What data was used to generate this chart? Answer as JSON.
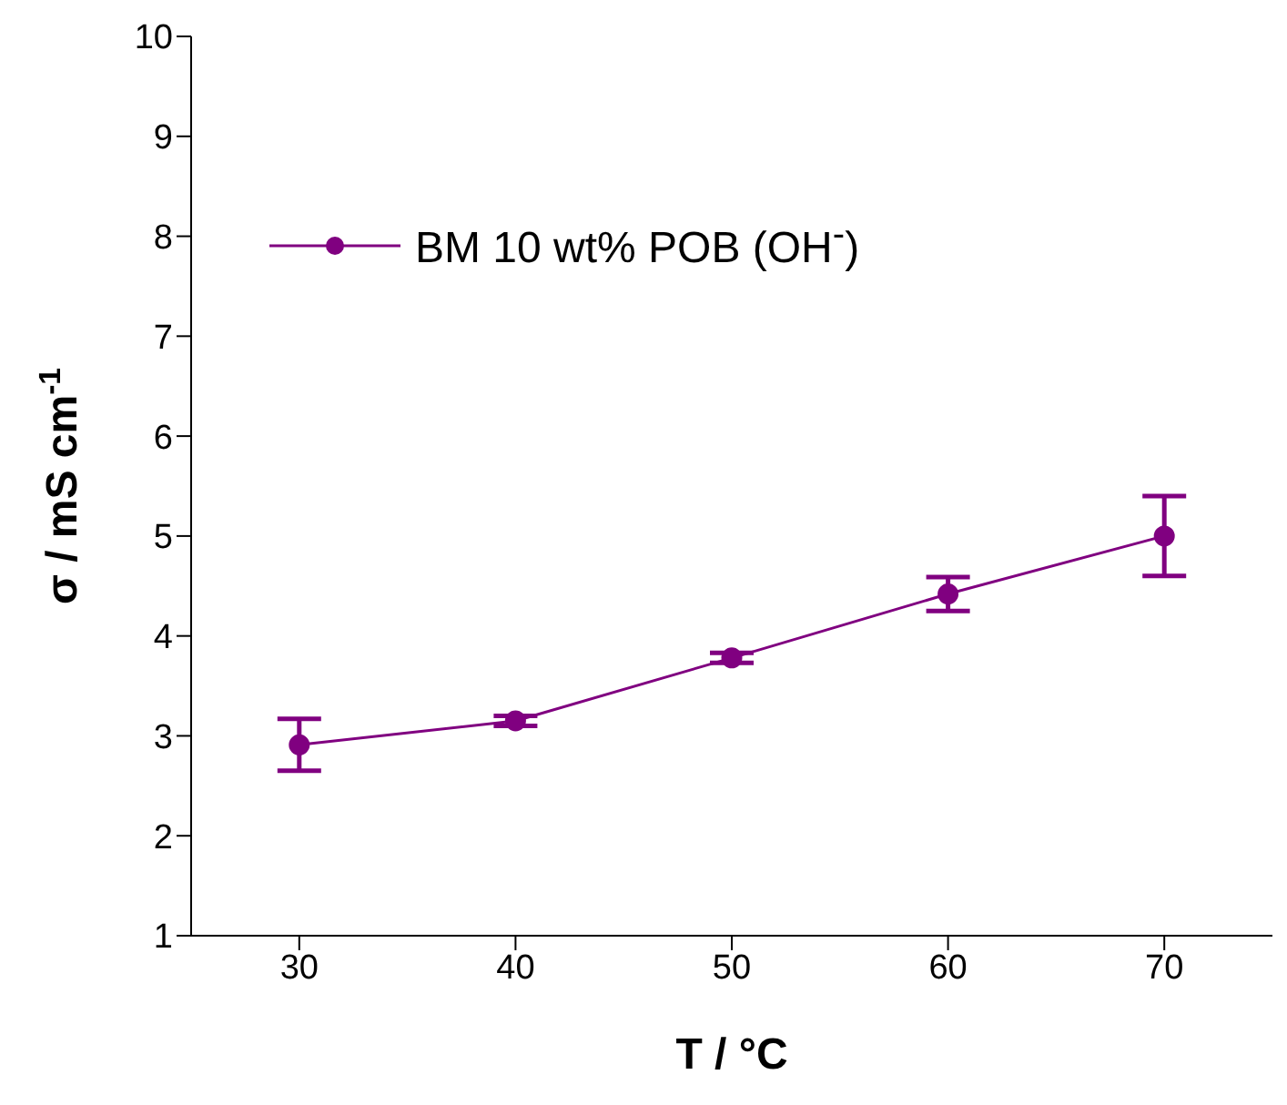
{
  "chart_data": {
    "type": "line",
    "xlabel": "T / °C",
    "ylabel": "σ / mS cm$^{-1}$",
    "x": [
      30,
      40,
      50,
      60,
      70
    ],
    "series": [
      {
        "name": "BM 10 wt% POB (OH$^{-}$)",
        "color": "#800080",
        "values": [
          2.91,
          3.15,
          3.78,
          4.42,
          5.0
        ],
        "errors": [
          0.26,
          0.05,
          0.05,
          0.17,
          0.4
        ]
      }
    ],
    "xlim": [
      25,
      75
    ],
    "xticks": [
      30,
      40,
      50,
      60,
      70
    ],
    "ylim": [
      1,
      10
    ],
    "yticks": [
      1,
      2,
      3,
      4,
      5,
      6,
      7,
      8,
      9,
      10
    ],
    "grid": false,
    "legend": "top left",
    "marker": "circle",
    "line_style": "solid"
  }
}
